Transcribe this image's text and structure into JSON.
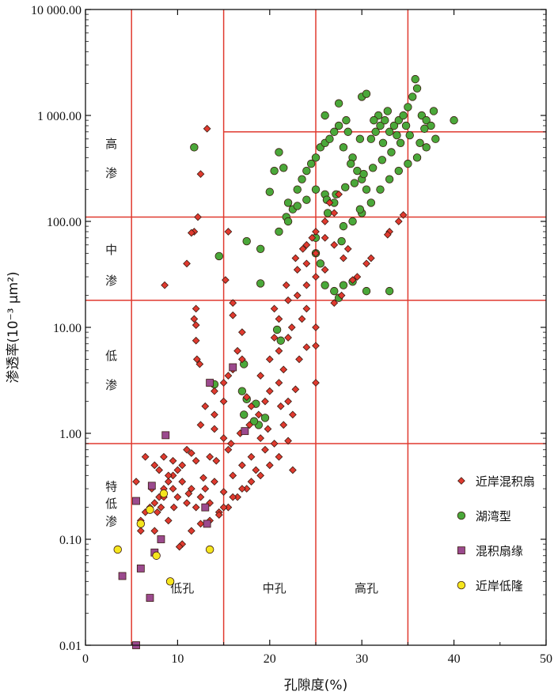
{
  "chart_data": {
    "type": "scatter",
    "title": "",
    "xlabel": "孔隙度(%)",
    "ylabel": "渗透率(10⁻³ μm²)",
    "xlim": [
      0,
      50
    ],
    "ylim": [
      0.01,
      10000
    ],
    "yscale": "log",
    "grid": false,
    "x_ticks": [
      "0",
      "10",
      "20",
      "30",
      "40",
      "50"
    ],
    "y_ticks": [
      "0.01",
      "0.10",
      "1.00",
      "10.00",
      "100.00",
      "1 000.00",
      "10 000.00"
    ],
    "x_ticks_values": [
      0,
      10,
      20,
      30,
      40,
      50
    ],
    "y_ticks_values": [
      0.01,
      0.1,
      1,
      10,
      100,
      1000,
      10000
    ],
    "legend_position": "bottom-right",
    "boundary_lines": {
      "vertical": [
        5,
        15,
        25,
        35
      ],
      "horizontal": [
        0.8,
        18,
        110,
        700
      ],
      "color": "#e03a2f"
    },
    "permeability_zones": [
      {
        "lines": [
          "高",
          "渗"
        ],
        "y": [
          550,
          290
        ]
      },
      {
        "lines": [
          "中",
          "渗"
        ],
        "y": [
          55,
          28
        ]
      },
      {
        "lines": [
          "低",
          "渗"
        ],
        "y": [
          5.5,
          2.9
        ]
      },
      {
        "lines": [
          "特",
          "低",
          "渗"
        ],
        "y": [
          0.32,
          0.22,
          0.15
        ]
      }
    ],
    "porosity_zones": [
      {
        "label": "低孔",
        "x": 10.5,
        "y": 0.035
      },
      {
        "label": "中孔",
        "x": 20.5,
        "y": 0.035
      },
      {
        "label": "高孔",
        "x": 30.5,
        "y": 0.035
      }
    ],
    "series": [
      {
        "name": "近岸混积扇",
        "marker": "diamond",
        "color": "#e03a2f",
        "points": [
          [
            13.2,
            750
          ],
          [
            12.5,
            280
          ],
          [
            12.2,
            110
          ],
          [
            11.8,
            80
          ],
          [
            11.5,
            78
          ],
          [
            11,
            40
          ],
          [
            8.6,
            25
          ],
          [
            15.5,
            80
          ],
          [
            15.2,
            28
          ],
          [
            16,
            17
          ],
          [
            12,
            15
          ],
          [
            12,
            10.5
          ],
          [
            12,
            7.5
          ],
          [
            12.1,
            5
          ],
          [
            12.4,
            4.5
          ],
          [
            11.8,
            12
          ],
          [
            16,
            13
          ],
          [
            17,
            9
          ],
          [
            16.5,
            6
          ],
          [
            17,
            5
          ],
          [
            16,
            4
          ],
          [
            15,
            3
          ],
          [
            15.5,
            3.5
          ],
          [
            14,
            2.5
          ],
          [
            15,
            2
          ],
          [
            13,
            1.8
          ],
          [
            14,
            1.5
          ],
          [
            12.5,
            1.2
          ],
          [
            14,
            1.1
          ],
          [
            15,
            0.9
          ],
          [
            15.5,
            0.7
          ],
          [
            13.5,
            0.6
          ],
          [
            12,
            0.55
          ],
          [
            11.5,
            0.65
          ],
          [
            11,
            0.7
          ],
          [
            10.5,
            0.5
          ],
          [
            10,
            0.45
          ],
          [
            9.5,
            0.4
          ],
          [
            9,
            0.35
          ],
          [
            8.5,
            0.3
          ],
          [
            8,
            0.25
          ],
          [
            7.5,
            0.22
          ],
          [
            7,
            0.2
          ],
          [
            6.5,
            0.18
          ],
          [
            6,
            0.15
          ],
          [
            5.5,
            0.35
          ],
          [
            6.5,
            0.6
          ],
          [
            7.5,
            0.5
          ],
          [
            8,
            0.45
          ],
          [
            8.5,
            0.6
          ],
          [
            9,
            0.4
          ],
          [
            9.5,
            0.3
          ],
          [
            10,
            0.25
          ],
          [
            11,
            0.22
          ],
          [
            12,
            0.2
          ],
          [
            13,
            0.3
          ],
          [
            14,
            0.35
          ],
          [
            15,
            0.28
          ],
          [
            16,
            0.4
          ],
          [
            17,
            0.5
          ],
          [
            18,
            0.6
          ],
          [
            18.5,
            0.45
          ],
          [
            17.5,
            0.3
          ],
          [
            16.5,
            0.25
          ],
          [
            15.5,
            0.2
          ],
          [
            14.5,
            0.18
          ],
          [
            13.5,
            0.15
          ],
          [
            12.5,
            0.14
          ],
          [
            11.5,
            0.12
          ],
          [
            10.5,
            0.09
          ],
          [
            10.2,
            0.085
          ],
          [
            9,
            0.15
          ],
          [
            7.5,
            0.12
          ],
          [
            6,
            0.12
          ],
          [
            7.2,
            0.3
          ],
          [
            9.6,
            0.2
          ],
          [
            11.2,
            0.27
          ],
          [
            12.8,
            0.38
          ],
          [
            14.2,
            0.55
          ],
          [
            15.8,
            0.8
          ],
          [
            16.8,
            1.0
          ],
          [
            17.8,
            1.2
          ],
          [
            18.8,
            1.5
          ],
          [
            19.5,
            2
          ],
          [
            20,
            2.5
          ],
          [
            21,
            3
          ],
          [
            22,
            2
          ],
          [
            22.5,
            1.5
          ],
          [
            21.5,
            1.2
          ],
          [
            20.5,
            0.8
          ],
          [
            19.5,
            0.7
          ],
          [
            19,
            0.9
          ],
          [
            18,
            1.8
          ],
          [
            17.5,
            2.2
          ],
          [
            19,
            3.5
          ],
          [
            20,
            5
          ],
          [
            20.5,
            8
          ],
          [
            21,
            6
          ],
          [
            21.5,
            4
          ],
          [
            22,
            8
          ],
          [
            21,
            12
          ],
          [
            20.5,
            15
          ],
          [
            22,
            18
          ],
          [
            23,
            20
          ],
          [
            24,
            25
          ],
          [
            23,
            35
          ],
          [
            24,
            40
          ],
          [
            25,
            50
          ],
          [
            24,
            60
          ],
          [
            25,
            80
          ],
          [
            26,
            100
          ],
          [
            27,
            120
          ],
          [
            26.5,
            150
          ],
          [
            27.5,
            180
          ],
          [
            26,
            70
          ],
          [
            27,
            60
          ],
          [
            28,
            45
          ],
          [
            26,
            35
          ],
          [
            25,
            30
          ],
          [
            24,
            15
          ],
          [
            23.5,
            12
          ],
          [
            25,
            10
          ],
          [
            24,
            6.5
          ],
          [
            25,
            6.7
          ],
          [
            25,
            3
          ],
          [
            22.5,
            0.45
          ],
          [
            22,
            0.85
          ],
          [
            21,
            0.6
          ],
          [
            20,
            0.5
          ],
          [
            19,
            0.4
          ],
          [
            18,
            0.35
          ],
          [
            17,
            0.3
          ],
          [
            16,
            0.25
          ],
          [
            15,
            0.2
          ],
          [
            14.5,
            0.17
          ],
          [
            13.5,
            0.22
          ],
          [
            12.5,
            0.25
          ],
          [
            11.5,
            0.3
          ],
          [
            10.5,
            0.35
          ],
          [
            9.5,
            0.55
          ],
          [
            8.5,
            0.25
          ],
          [
            7.8,
            0.18
          ],
          [
            8.2,
            0.2
          ],
          [
            19.8,
            1.1
          ],
          [
            21.2,
            1.8
          ],
          [
            22.8,
            2.6
          ],
          [
            23.2,
            5
          ],
          [
            22.4,
            10
          ],
          [
            21.8,
            25
          ],
          [
            22.8,
            45
          ],
          [
            23.6,
            55
          ],
          [
            24.6,
            70
          ],
          [
            28.5,
            55
          ],
          [
            29.5,
            30
          ],
          [
            30.5,
            40
          ],
          [
            31,
            45
          ],
          [
            33,
            80
          ],
          [
            34,
            100
          ],
          [
            34.5,
            115
          ],
          [
            32.8,
            75
          ],
          [
            29,
            28
          ],
          [
            27.8,
            20
          ],
          [
            27,
            17
          ]
        ]
      },
      {
        "name": "湖湾型",
        "marker": "circle",
        "color": "#4aa83a",
        "points": [
          [
            11.8,
            500
          ],
          [
            14.5,
            47
          ],
          [
            17.5,
            65
          ],
          [
            19,
            55
          ],
          [
            19,
            26
          ],
          [
            17,
            2.5
          ],
          [
            17.5,
            2.1
          ],
          [
            18.5,
            1.9
          ],
          [
            18.8,
            1.2
          ],
          [
            14,
            2.9
          ],
          [
            17.2,
            4.5
          ],
          [
            19.5,
            1.4
          ],
          [
            20,
            190
          ],
          [
            20.5,
            300
          ],
          [
            21,
            450
          ],
          [
            21.5,
            320
          ],
          [
            21.8,
            110
          ],
          [
            22,
            150
          ],
          [
            22.5,
            130
          ],
          [
            23,
            200
          ],
          [
            23.5,
            250
          ],
          [
            24,
            300
          ],
          [
            24.5,
            350
          ],
          [
            25,
            400
          ],
          [
            25.5,
            500
          ],
          [
            26,
            550
          ],
          [
            26.5,
            600
          ],
          [
            27,
            700
          ],
          [
            27.5,
            800
          ],
          [
            28,
            500
          ],
          [
            28.5,
            700
          ],
          [
            29,
            400
          ],
          [
            29.5,
            300
          ],
          [
            30,
            250
          ],
          [
            30.5,
            200
          ],
          [
            31,
            600
          ],
          [
            31.5,
            700
          ],
          [
            32,
            800
          ],
          [
            32.5,
            900
          ],
          [
            33,
            700
          ],
          [
            33.5,
            800
          ],
          [
            34,
            900
          ],
          [
            34.5,
            1000
          ],
          [
            35,
            1200
          ],
          [
            35.5,
            1500
          ],
          [
            35.8,
            2200
          ],
          [
            36,
            1800
          ],
          [
            36.5,
            1000
          ],
          [
            37,
            900
          ],
          [
            37.5,
            800
          ],
          [
            38,
            600
          ],
          [
            37,
            500
          ],
          [
            36,
            400
          ],
          [
            35,
            350
          ],
          [
            34,
            300
          ],
          [
            33,
            250
          ],
          [
            32,
            200
          ],
          [
            31,
            150
          ],
          [
            30,
            120
          ],
          [
            29,
            100
          ],
          [
            28,
            90
          ],
          [
            27,
            150
          ],
          [
            26,
            180
          ],
          [
            25,
            200
          ],
          [
            24,
            160
          ],
          [
            23,
            140
          ],
          [
            22,
            100
          ],
          [
            21,
            80
          ],
          [
            25.5,
            40
          ],
          [
            25,
            50
          ],
          [
            25,
            70
          ],
          [
            26,
            25
          ],
          [
            27,
            22
          ],
          [
            28,
            25
          ],
          [
            29,
            27
          ],
          [
            30.5,
            22
          ],
          [
            33,
            22
          ],
          [
            27.5,
            19
          ],
          [
            30,
            1500
          ],
          [
            30.5,
            1600
          ],
          [
            27.5,
            1300
          ],
          [
            26,
            1000
          ],
          [
            40,
            900
          ],
          [
            37.8,
            1100
          ],
          [
            36.8,
            750
          ],
          [
            35.2,
            650
          ],
          [
            34.2,
            550
          ],
          [
            33.2,
            450
          ],
          [
            32.2,
            380
          ],
          [
            31.2,
            320
          ],
          [
            30.2,
            280
          ],
          [
            29.2,
            230
          ],
          [
            28.2,
            210
          ],
          [
            27.2,
            180
          ],
          [
            26.2,
            160
          ],
          [
            31.8,
            1000
          ],
          [
            32.8,
            1100
          ],
          [
            34.8,
            800
          ],
          [
            28.8,
            350
          ],
          [
            29.8,
            600
          ],
          [
            28.3,
            900
          ],
          [
            31.3,
            900
          ],
          [
            32.3,
            550
          ],
          [
            33.8,
            650
          ],
          [
            36.3,
            550
          ],
          [
            20.8,
            9.5
          ],
          [
            21.2,
            7.5
          ],
          [
            17.2,
            1.5
          ],
          [
            18.3,
            1.3
          ],
          [
            26.3,
            120
          ],
          [
            27.8,
            65
          ],
          [
            29.8,
            130
          ]
        ]
      },
      {
        "name": "混积扇缘",
        "marker": "square",
        "color": "#9b4a8e",
        "points": [
          [
            5.5,
            0.23
          ],
          [
            4,
            0.045
          ],
          [
            6,
            0.053
          ],
          [
            7,
            0.028
          ],
          [
            7.5,
            0.075
          ],
          [
            8.2,
            0.1
          ],
          [
            8.7,
            0.96
          ],
          [
            7.2,
            0.32
          ],
          [
            13,
            0.2
          ],
          [
            13.2,
            0.14
          ],
          [
            13.5,
            3
          ],
          [
            16,
            4.2
          ],
          [
            17.3,
            1.05
          ],
          [
            5.5,
            0.01
          ]
        ]
      },
      {
        "name": "近岸低隆",
        "marker": "circle",
        "color": "#f5e61e",
        "points": [
          [
            3.5,
            0.08
          ],
          [
            6,
            0.14
          ],
          [
            7,
            0.19
          ],
          [
            8.5,
            0.27
          ],
          [
            7.7,
            0.07
          ],
          [
            9.2,
            0.04
          ],
          [
            13.5,
            0.08
          ]
        ]
      }
    ]
  }
}
